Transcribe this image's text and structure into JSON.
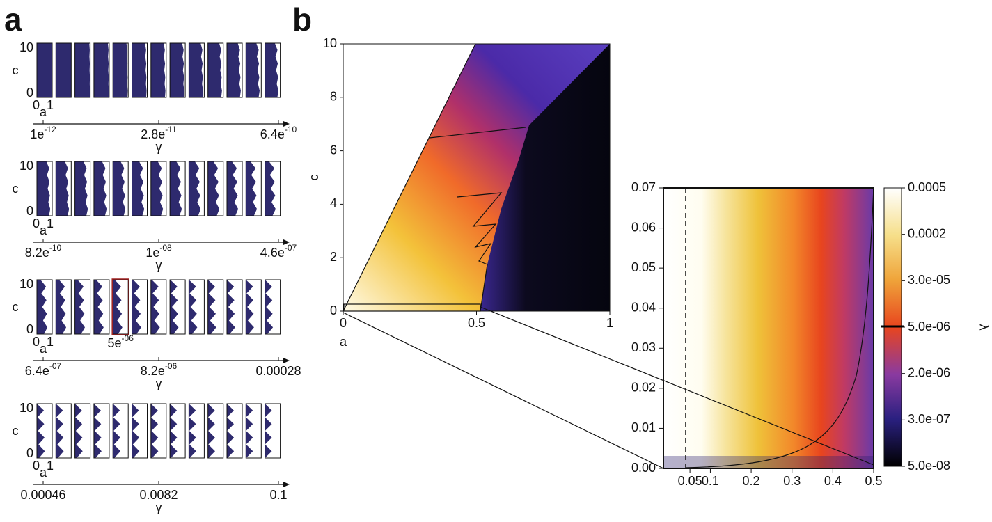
{
  "panel_a": {
    "label": "a",
    "rows": [
      {
        "y_label": "c",
        "y_ticks": [
          "10",
          "0"
        ],
        "x_ticks": [
          "0",
          "1"
        ],
        "x_label": "a",
        "gamma_label": "γ",
        "gamma_ticks": [
          {
            "mantissa": "1e",
            "exponent": "-12"
          },
          {
            "mantissa": "2.8e",
            "exponent": "-11"
          },
          {
            "mantissa": "6.4e",
            "exponent": "-10"
          }
        ]
      },
      {
        "y_label": "c",
        "y_ticks": [
          "10",
          "0"
        ],
        "x_ticks": [
          "0",
          "1"
        ],
        "x_label": "a",
        "gamma_label": "γ",
        "gamma_ticks": [
          {
            "mantissa": "8.2e",
            "exponent": "-10"
          },
          {
            "mantissa": "1e",
            "exponent": "-08"
          },
          {
            "mantissa": "4.6e",
            "exponent": "-07"
          }
        ]
      },
      {
        "y_label": "c",
        "y_ticks": [
          "10",
          "0"
        ],
        "x_ticks": [
          "0",
          "1"
        ],
        "x_label": "a",
        "gamma_label": "γ",
        "gamma_ticks": [
          {
            "mantissa": "6.4e",
            "exponent": "-07"
          },
          {
            "mantissa": "8.2e",
            "exponent": "-06"
          },
          {
            "mantissa": "0.00028",
            "exponent": ""
          }
        ],
        "highlight": {
          "mantissa": "5e",
          "exponent": "-06"
        }
      },
      {
        "y_label": "c",
        "y_ticks": [
          "10",
          "0"
        ],
        "x_ticks": [
          "0",
          "1"
        ],
        "x_label": "a",
        "gamma_label": "γ",
        "gamma_ticks": [
          {
            "mantissa": "0.00046",
            "exponent": ""
          },
          {
            "mantissa": "0.0082",
            "exponent": ""
          },
          {
            "mantissa": "0.1",
            "exponent": ""
          }
        ]
      }
    ]
  },
  "panel_b": {
    "label": "b",
    "main": {
      "x_label": "a",
      "y_label": "c",
      "xlim": [
        0,
        1
      ],
      "ylim": [
        0,
        10
      ],
      "xticks": [
        0,
        0.5,
        1
      ],
      "yticks": [
        0,
        2,
        4,
        6,
        8,
        10
      ]
    },
    "inset": {
      "xlim": [
        -0.015,
        0.5
      ],
      "ylim": [
        0,
        0.07
      ],
      "xticks": [
        0.05,
        0.1,
        0.2,
        0.3,
        0.4,
        0.5
      ],
      "yticks": [
        {
          "value": 0,
          "label": "0.00"
        },
        {
          "value": 0.01,
          "label": "0.01"
        },
        {
          "value": 0.02,
          "label": "0.02"
        },
        {
          "value": 0.03,
          "label": "0.03"
        },
        {
          "value": 0.04,
          "label": "0.04"
        },
        {
          "value": 0.05,
          "label": "0.05"
        },
        {
          "value": 0.06,
          "label": "0.06"
        },
        {
          "value": 0.07,
          "label": "0.07"
        }
      ]
    },
    "colorbar": {
      "label": "λ",
      "ticks": [
        "0.0005",
        "0.0002",
        "3.0e-05",
        "5.0e-06",
        "2.0e-06",
        "3.0e-07",
        "5.0e-08"
      ]
    }
  }
}
